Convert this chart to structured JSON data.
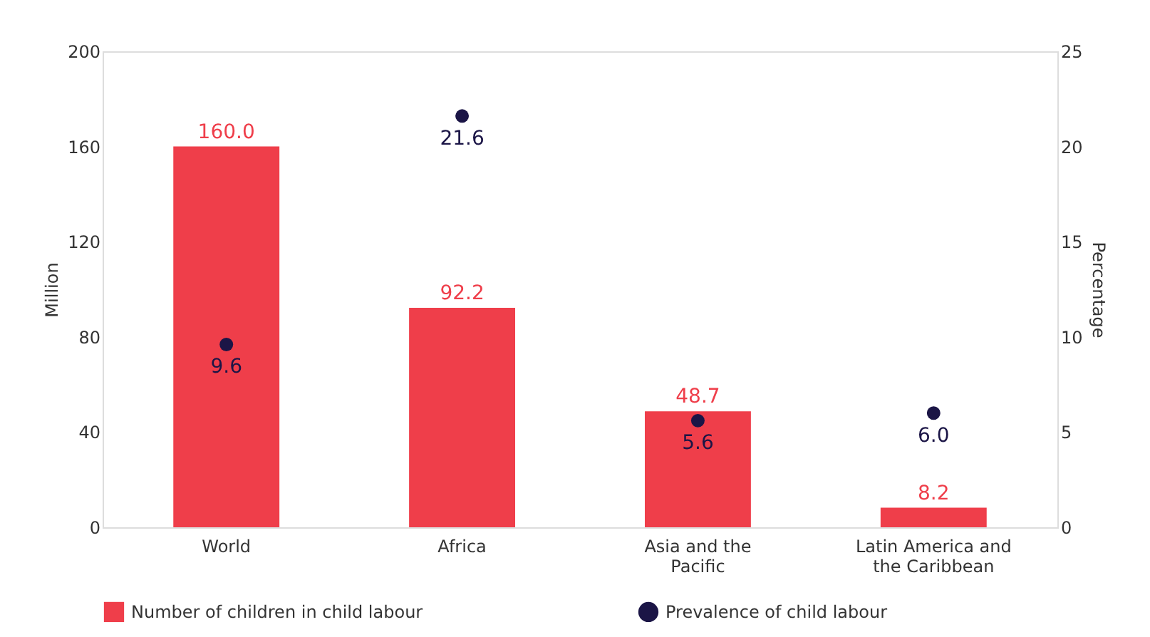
{
  "chart_data": {
    "type": "bar",
    "categories": [
      "World",
      "Africa",
      "Asia and the Pacific",
      "Latin America and the Caribbean"
    ],
    "ylabel": "Million",
    "y2label": "Percentage",
    "ylim": [
      0,
      200
    ],
    "yticks": [
      0,
      40,
      80,
      120,
      160,
      200
    ],
    "y2lim": [
      0,
      25
    ],
    "y2ticks": [
      0,
      5,
      10,
      15,
      20,
      25
    ],
    "series": [
      {
        "name": "Number of children in child labour",
        "color": "#ef3e4a",
        "values": [
          160.0,
          92.2,
          48.7,
          8.2
        ],
        "value_labels": [
          "160.0",
          "92.2",
          "48.7",
          "8.2"
        ]
      },
      {
        "name": "Prevalence of child labour",
        "type": "scatter",
        "axis": "y2",
        "marker": "circle",
        "color": "#1b1546",
        "values": [
          9.6,
          21.6,
          5.6,
          6.0
        ],
        "value_labels": [
          "9.6",
          "21.6",
          "5.6",
          "6.0"
        ]
      }
    ],
    "grid": false,
    "legend": "bottom"
  }
}
